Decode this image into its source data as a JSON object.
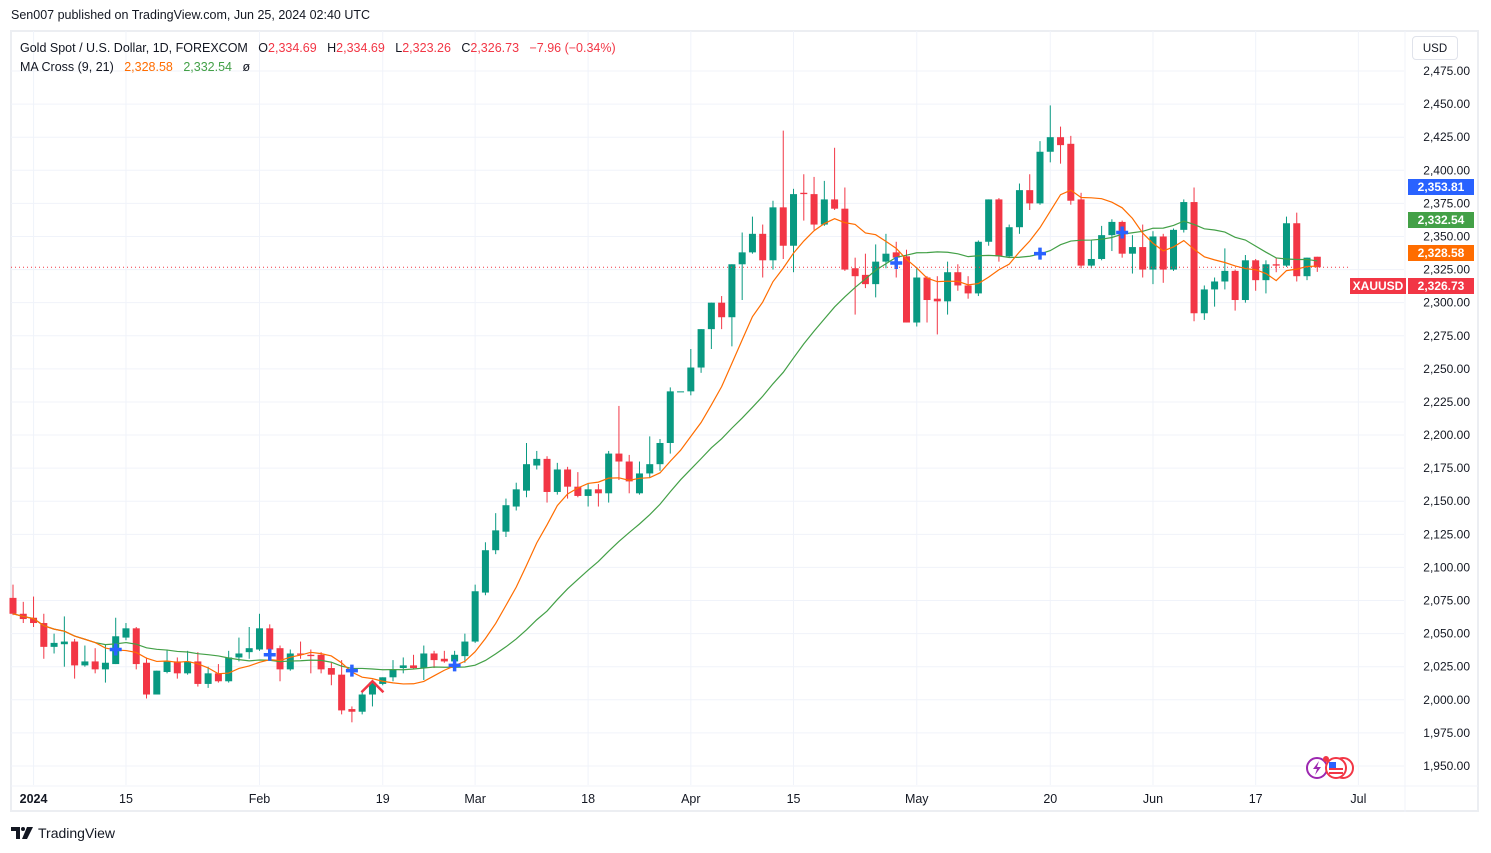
{
  "publish_line": "Sen007 published on TradingView.com, Jun 25, 2024 02:40 UTC",
  "legend": {
    "symbol_line": "Gold Spot / U.S. Dollar, 1D, FOREXCOM",
    "o_label": "O",
    "o_value": "2,334.69",
    "h_label": "H",
    "h_value": "2,334.69",
    "l_label": "L",
    "l_value": "2,323.26",
    "c_label": "C",
    "c_value": "2,326.73",
    "change": "−7.96 (−0.34%)",
    "indicator_name": "MA Cross (9, 21)",
    "ma_fast_value": "2,328.58",
    "ma_slow_value": "2,332.54",
    "indicator_extra": "ø"
  },
  "currency_button": "USD",
  "price_labels": {
    "cross_value": "2,353.81",
    "ma_slow": "2,332.54",
    "ma_fast": "2,328.58",
    "last_price": "2,326.73",
    "symbol": "XAUUSD"
  },
  "footer_brand": "TradingView",
  "colors": {
    "up": "#089981",
    "down": "#f23645",
    "ma_fast": "#ff6d00",
    "ma_slow": "#43a047",
    "cross": "#2962ff",
    "grid": "#f0f3fa"
  },
  "chart_data": {
    "type": "candlestick",
    "title": "Gold Spot / U.S. Dollar, 1D, FOREXCOM",
    "ylim": [
      1937,
      2487
    ],
    "y_ticks": [
      1950,
      1975,
      2000,
      2025,
      2050,
      2075,
      2100,
      2125,
      2150,
      2175,
      2200,
      2225,
      2250,
      2275,
      2300,
      2325,
      2350,
      2375,
      2400,
      2425,
      2450,
      2475
    ],
    "y_tick_labels": [
      "1,950.00",
      "1,975.00",
      "2,000.00",
      "2,025.00",
      "2,050.00",
      "2,075.00",
      "2,100.00",
      "2,125.00",
      "2,150.00",
      "2,175.00",
      "2,200.00",
      "2,225.00",
      "2,250.00",
      "2,275.00",
      "2,300.00",
      "2,325.00",
      "2,350.00",
      "2,375.00",
      "2,400.00",
      "2,425.00",
      "2,450.00",
      "2,475.00"
    ],
    "x_labels": [
      {
        "label": "2024",
        "bar": 2
      },
      {
        "label": "15",
        "bar": 11
      },
      {
        "label": "Feb",
        "bar": 24
      },
      {
        "label": "19",
        "bar": 36
      },
      {
        "label": "Mar",
        "bar": 45
      },
      {
        "label": "18",
        "bar": 56
      },
      {
        "label": "Apr",
        "bar": 66
      },
      {
        "label": "15",
        "bar": 76
      },
      {
        "label": "May",
        "bar": 88
      },
      {
        "label": "20",
        "bar": 101
      },
      {
        "label": "Jun",
        "bar": 111
      },
      {
        "label": "17",
        "bar": 121
      },
      {
        "label": "Jul",
        "bar": 131
      }
    ],
    "ma_fast_period": 9,
    "ma_slow_period": 21,
    "last_price": 2326.73,
    "columns": [
      "date",
      "open",
      "high",
      "low",
      "close"
    ],
    "candles": [
      [
        "2023-12-28",
        2077,
        2087,
        2064,
        2065
      ],
      [
        "2023-12-29",
        2065,
        2074,
        2058,
        2061
      ],
      [
        "2024-01-02",
        2062,
        2078,
        2055,
        2058
      ],
      [
        "2024-01-03",
        2058,
        2065,
        2031,
        2040
      ],
      [
        "2024-01-04",
        2040,
        2050,
        2035,
        2043
      ],
      [
        "2024-01-05",
        2042,
        2063,
        2025,
        2044
      ],
      [
        "2024-01-08",
        2044,
        2046,
        2016,
        2026
      ],
      [
        "2024-01-09",
        2026,
        2041,
        2025,
        2029
      ],
      [
        "2024-01-10",
        2029,
        2039,
        2020,
        2023
      ],
      [
        "2024-01-11",
        2023,
        2042,
        2013,
        2028
      ],
      [
        "2024-01-12",
        2027,
        2062,
        2027,
        2048
      ],
      [
        "2024-01-15",
        2047,
        2058,
        2045,
        2054
      ],
      [
        "2024-01-16",
        2054,
        2055,
        2023,
        2027
      ],
      [
        "2024-01-17",
        2028,
        2032,
        2001,
        2004
      ],
      [
        "2024-01-18",
        2004,
        2022,
        2004,
        2022
      ],
      [
        "2024-01-19",
        2021,
        2038,
        2020,
        2029
      ],
      [
        "2024-01-22",
        2029,
        2032,
        2016,
        2020
      ],
      [
        "2024-01-23",
        2020,
        2037,
        2019,
        2029
      ],
      [
        "2024-01-24",
        2029,
        2036,
        2010,
        2012
      ],
      [
        "2024-01-25",
        2012,
        2025,
        2009,
        2020
      ],
      [
        "2024-01-26",
        2020,
        2027,
        2013,
        2014
      ],
      [
        "2024-01-29",
        2014,
        2037,
        2013,
        2032
      ],
      [
        "2024-01-30",
        2032,
        2047,
        2029,
        2035
      ],
      [
        "2024-01-31",
        2036,
        2055,
        2031,
        2039
      ],
      [
        "2024-02-01",
        2038,
        2065,
        2037,
        2054
      ],
      [
        "2024-02-02",
        2054,
        2057,
        2036,
        2038
      ],
      [
        "2024-02-05",
        2039,
        2041,
        2014,
        2023
      ],
      [
        "2024-02-06",
        2023,
        2038,
        2022,
        2035
      ],
      [
        "2024-02-07",
        2035,
        2044,
        2031,
        2034
      ],
      [
        "2024-02-08",
        2034,
        2038,
        2020,
        2033
      ],
      [
        "2024-02-09",
        2034,
        2036,
        2020,
        2023
      ],
      [
        "2024-02-12",
        2024,
        2028,
        2011,
        2019
      ],
      [
        "2024-02-13",
        2019,
        2030,
        1989,
        1992
      ],
      [
        "2024-02-14",
        1993,
        1995,
        1983,
        1991
      ],
      [
        "2024-02-15",
        1991,
        2007,
        1989,
        2004
      ],
      [
        "2024-02-16",
        2004,
        2014,
        1995,
        2013
      ],
      [
        "2024-02-19",
        2012,
        2017,
        2011,
        2017
      ],
      [
        "2024-02-20",
        2017,
        2030,
        2014,
        2023
      ],
      [
        "2024-02-21",
        2024,
        2032,
        2020,
        2026
      ],
      [
        "2024-02-22",
        2026,
        2034,
        2023,
        2024
      ],
      [
        "2024-02-23",
        2024,
        2041,
        2015,
        2035
      ],
      [
        "2024-02-26",
        2035,
        2037,
        2024,
        2030
      ],
      [
        "2024-02-27",
        2031,
        2037,
        2028,
        2029
      ],
      [
        "2024-02-28",
        2029,
        2037,
        2028,
        2034
      ],
      [
        "2024-02-29",
        2033,
        2050,
        2028,
        2044
      ],
      [
        "2024-03-01",
        2044,
        2087,
        2043,
        2082
      ],
      [
        "2024-03-04",
        2081,
        2119,
        2079,
        2113
      ],
      [
        "2024-03-05",
        2113,
        2141,
        2110,
        2128
      ],
      [
        "2024-03-06",
        2127,
        2152,
        2123,
        2147
      ],
      [
        "2024-03-07",
        2146,
        2164,
        2143,
        2159
      ],
      [
        "2024-03-08",
        2158,
        2194,
        2153,
        2178
      ],
      [
        "2024-03-11",
        2177,
        2188,
        2174,
        2182
      ],
      [
        "2024-03-12",
        2182,
        2184,
        2149,
        2157
      ],
      [
        "2024-03-13",
        2157,
        2179,
        2155,
        2174
      ],
      [
        "2024-03-14",
        2174,
        2176,
        2152,
        2161
      ],
      [
        "2024-03-15",
        2161,
        2172,
        2153,
        2154
      ],
      [
        "2024-03-18",
        2154,
        2163,
        2146,
        2159
      ],
      [
        "2024-03-19",
        2159,
        2163,
        2146,
        2156
      ],
      [
        "2024-03-20",
        2156,
        2188,
        2149,
        2186
      ],
      [
        "2024-03-21",
        2186,
        2222,
        2166,
        2180
      ],
      [
        "2024-03-22",
        2180,
        2185,
        2156,
        2165
      ],
      [
        "2024-03-25",
        2156,
        2180,
        2155,
        2171
      ],
      [
        "2024-03-26",
        2171,
        2199,
        2168,
        2178
      ],
      [
        "2024-03-27",
        2178,
        2197,
        2173,
        2194
      ],
      [
        "2024-03-28",
        2194,
        2236,
        2186,
        2233
      ],
      [
        "2024-03-29",
        2233,
        2233,
        2233,
        2233
      ],
      [
        "2024-04-01",
        2233,
        2265,
        2230,
        2251
      ],
      [
        "2024-04-02",
        2251,
        2280,
        2247,
        2280
      ],
      [
        "2024-04-03",
        2280,
        2300,
        2265,
        2300
      ],
      [
        "2024-04-04",
        2300,
        2305,
        2280,
        2289
      ],
      [
        "2024-04-05",
        2289,
        2329,
        2267,
        2329
      ],
      [
        "2024-04-08",
        2329,
        2353,
        2302,
        2338
      ],
      [
        "2024-04-09",
        2338,
        2365,
        2337,
        2352
      ],
      [
        "2024-04-10",
        2352,
        2359,
        2319,
        2332
      ],
      [
        "2024-04-11",
        2332,
        2377,
        2325,
        2372
      ],
      [
        "2024-04-12",
        2372,
        2430,
        2333,
        2343
      ],
      [
        "2024-04-15",
        2343,
        2386,
        2323,
        2382
      ],
      [
        "2024-04-16",
        2383,
        2397,
        2362,
        2382
      ],
      [
        "2024-04-17",
        2382,
        2395,
        2355,
        2359
      ],
      [
        "2024-04-18",
        2359,
        2392,
        2358,
        2378
      ],
      [
        "2024-04-19",
        2378,
        2417,
        2370,
        2371
      ],
      [
        "2024-04-22",
        2371,
        2387,
        2324,
        2325
      ],
      [
        "2024-04-23",
        2326,
        2334,
        2291,
        2320
      ],
      [
        "2024-04-24",
        2321,
        2337,
        2311,
        2314
      ],
      [
        "2024-04-25",
        2314,
        2344,
        2304,
        2331
      ],
      [
        "2024-04-26",
        2331,
        2352,
        2326,
        2337
      ],
      [
        "2024-04-29",
        2338,
        2346,
        2319,
        2334
      ],
      [
        "2024-04-30",
        2335,
        2340,
        2285,
        2285
      ],
      [
        "2024-05-01",
        2285,
        2327,
        2282,
        2319
      ],
      [
        "2024-05-02",
        2319,
        2320,
        2285,
        2302
      ],
      [
        "2024-05-03",
        2303,
        2320,
        2276,
        2301
      ],
      [
        "2024-05-06",
        2301,
        2331,
        2291,
        2323
      ],
      [
        "2024-05-07",
        2323,
        2329,
        2309,
        2313
      ],
      [
        "2024-05-08",
        2313,
        2320,
        2303,
        2307
      ],
      [
        "2024-05-09",
        2307,
        2347,
        2305,
        2346
      ],
      [
        "2024-05-10",
        2346,
        2378,
        2343,
        2378
      ],
      [
        "2024-05-13",
        2378,
        2379,
        2331,
        2335
      ],
      [
        "2024-05-14",
        2335,
        2359,
        2334,
        2357
      ],
      [
        "2024-05-15",
        2357,
        2390,
        2352,
        2385
      ],
      [
        "2024-05-16",
        2385,
        2397,
        2370,
        2375
      ],
      [
        "2024-05-17",
        2375,
        2422,
        2374,
        2414
      ],
      [
        "2024-05-20",
        2414,
        2449,
        2406,
        2425
      ],
      [
        "2024-05-21",
        2425,
        2433,
        2405,
        2419
      ],
      [
        "2024-05-22",
        2420,
        2426,
        2374,
        2377
      ],
      [
        "2024-05-23",
        2378,
        2383,
        2326,
        2328
      ],
      [
        "2024-05-24",
        2328,
        2347,
        2326,
        2333
      ],
      [
        "2024-05-27",
        2333,
        2358,
        2332,
        2351
      ],
      [
        "2024-05-28",
        2351,
        2363,
        2339,
        2361
      ],
      [
        "2024-05-29",
        2361,
        2362,
        2334,
        2337
      ],
      [
        "2024-05-30",
        2337,
        2351,
        2322,
        2342
      ],
      [
        "2024-05-31",
        2342,
        2359,
        2319,
        2325
      ],
      [
        "2024-06-03",
        2325,
        2354,
        2314,
        2350
      ],
      [
        "2024-06-04",
        2350,
        2352,
        2315,
        2325
      ],
      [
        "2024-06-05",
        2325,
        2356,
        2324,
        2355
      ],
      [
        "2024-06-06",
        2355,
        2378,
        2353,
        2376
      ],
      [
        "2024-06-07",
        2376,
        2387,
        2286,
        2292
      ],
      [
        "2024-06-10",
        2292,
        2313,
        2287,
        2310
      ],
      [
        "2024-06-11",
        2310,
        2319,
        2297,
        2316
      ],
      [
        "2024-06-12",
        2316,
        2341,
        2310,
        2324
      ],
      [
        "2024-06-13",
        2324,
        2325,
        2294,
        2302
      ],
      [
        "2024-06-14",
        2302,
        2336,
        2300,
        2332
      ],
      [
        "2024-06-17",
        2332,
        2333,
        2309,
        2317
      ],
      [
        "2024-06-18",
        2317,
        2332,
        2307,
        2329
      ],
      [
        "2024-06-19",
        2329,
        2334,
        2323,
        2328
      ],
      [
        "2024-06-20",
        2328,
        2365,
        2327,
        2360
      ],
      [
        "2024-06-21",
        2360,
        2368,
        2316,
        2320
      ],
      [
        "2024-06-24",
        2320,
        2334,
        2317,
        2334
      ],
      [
        "2024-06-25",
        2334.69,
        2334.69,
        2323.26,
        2326.73
      ]
    ],
    "cross_markers": [
      {
        "bar": 10,
        "price": 2038
      },
      {
        "bar": 25,
        "price": 2034
      },
      {
        "bar": 33,
        "price": 2022
      },
      {
        "bar": 43,
        "price": 2026
      },
      {
        "bar": 86,
        "price": 2330
      },
      {
        "bar": 100,
        "price": 2337
      },
      {
        "bar": 108,
        "price": 2353
      }
    ],
    "arrow_markers": [
      {
        "bar": 35,
        "price": 2014,
        "direction": "up"
      }
    ]
  }
}
